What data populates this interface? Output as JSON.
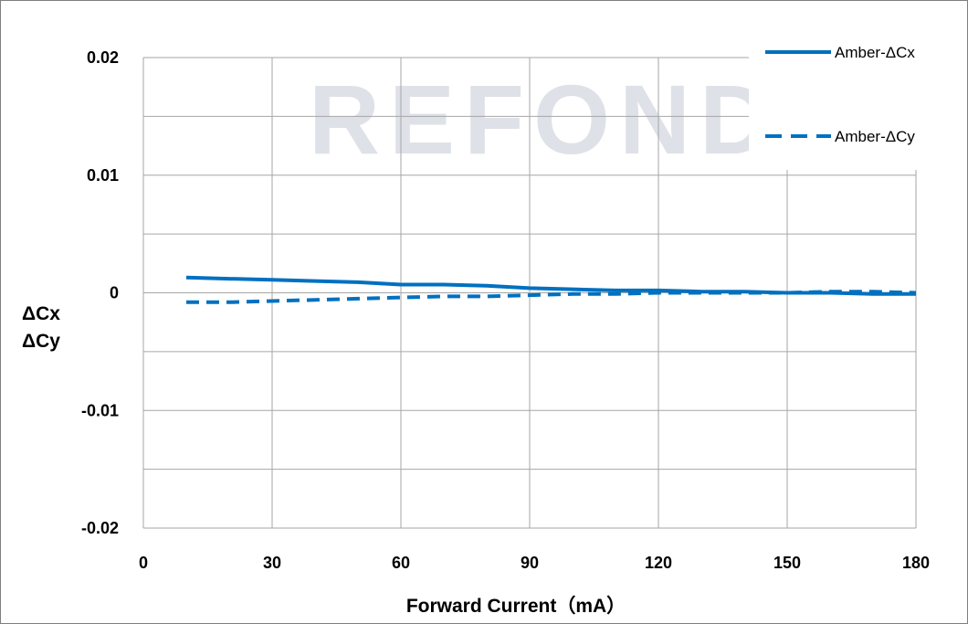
{
  "watermark": "REFOND",
  "chart_data": {
    "type": "line",
    "xlabel": "Forward Current（mA）",
    "ylabel_lines": [
      "ΔCx",
      "ΔCy"
    ],
    "xlim": [
      0,
      180
    ],
    "ylim": [
      -0.02,
      0.02
    ],
    "x_ticks": [
      0,
      30,
      60,
      90,
      120,
      150,
      180
    ],
    "x_tick_labels": [
      "0",
      "30",
      "60",
      "90",
      "120",
      "150",
      "180"
    ],
    "y_ticks": [
      0.02,
      0.01,
      0,
      -0.01,
      -0.02
    ],
    "y_tick_labels": [
      "0.02",
      "0.01",
      "0",
      "-0.01",
      "-0.02"
    ],
    "minor_y_gridlines": [
      0.015,
      0.005,
      -0.005,
      -0.015
    ],
    "grid": true,
    "legend_position": "top-right",
    "series": [
      {
        "name": "Amber-ΔCx",
        "style": "solid",
        "color": "#0070c0",
        "x": [
          10,
          20,
          30,
          40,
          50,
          60,
          70,
          80,
          90,
          100,
          110,
          120,
          130,
          140,
          150,
          160,
          170,
          180
        ],
        "y": [
          0.0013,
          0.0012,
          0.0011,
          0.001,
          0.0009,
          0.0007,
          0.0007,
          0.0006,
          0.0004,
          0.0003,
          0.0002,
          0.0002,
          0.0001,
          0.0001,
          0.0,
          0.0,
          -0.0001,
          -0.0001
        ]
      },
      {
        "name": "Amber-ΔCy",
        "style": "dashed",
        "color": "#0070c0",
        "x": [
          10,
          20,
          30,
          40,
          50,
          60,
          70,
          80,
          90,
          100,
          110,
          120,
          130,
          140,
          150,
          160,
          170,
          180
        ],
        "y": [
          -0.0008,
          -0.0008,
          -0.0007,
          -0.0006,
          -0.0005,
          -0.0004,
          -0.0003,
          -0.0003,
          -0.0002,
          -0.0001,
          -0.0001,
          0.0,
          0.0,
          0.0,
          0.0,
          0.0001,
          0.0001,
          0.0
        ]
      }
    ]
  }
}
